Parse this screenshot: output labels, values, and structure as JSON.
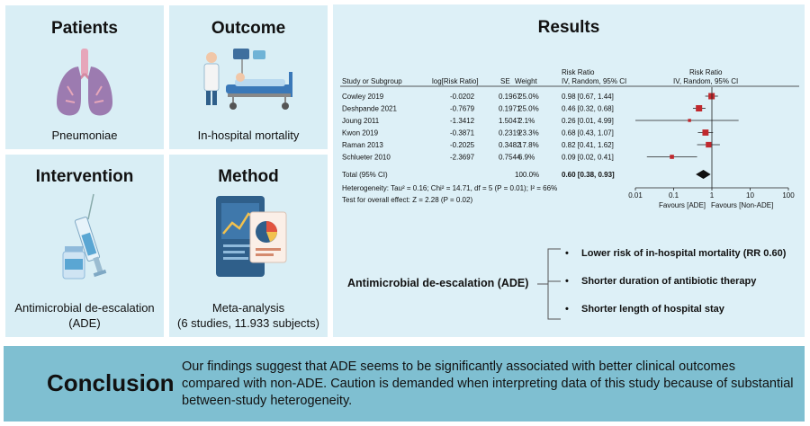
{
  "cards": {
    "patients": {
      "title": "Patients",
      "caption": "Pneumoniae"
    },
    "outcome": {
      "title": "Outcome",
      "caption": "In-hospital mortality"
    },
    "intervention": {
      "title": "Intervention",
      "caption_line1": "Antimicrobial de-escalation",
      "caption_line2": "(ADE)"
    },
    "method": {
      "title": "Method",
      "caption_line1": "Meta-analysis",
      "caption_line2": "(6 studies, 11.933 subjects)"
    }
  },
  "results": {
    "title": "Results",
    "headers": {
      "study": "Study or Subgroup",
      "logrr": "log[Risk Ratio]",
      "se": "SE",
      "weight": "Weight",
      "rr_top": "Risk Ratio",
      "rr_sub": "IV, Random, 95% CI",
      "plot_top": "Risk Ratio",
      "plot_sub": "IV, Random, 95% CI"
    },
    "studies": [
      {
        "name": "Cowley 2019",
        "logrr": "-0.0202",
        "se": "0.1967",
        "weight": "25.0%",
        "ci": "0.98 [0.67, 1.44]"
      },
      {
        "name": "Deshpande 2021",
        "logrr": "-0.7679",
        "se": "0.1971",
        "weight": "25.0%",
        "ci": "0.46 [0.32, 0.68]"
      },
      {
        "name": "Joung 2011",
        "logrr": "-1.3412",
        "se": "1.5047",
        "weight": "2.1%",
        "ci": "0.26 [0.01, 4.99]"
      },
      {
        "name": "Kwon 2019",
        "logrr": "-0.3871",
        "se": "0.2319",
        "weight": "23.3%",
        "ci": "0.68 [0.43, 1.07]"
      },
      {
        "name": "Raman 2013",
        "logrr": "-0.2025",
        "se": "0.3482",
        "weight": "17.8%",
        "ci": "0.82 [0.41, 1.62]"
      },
      {
        "name": "Schlueter 2010",
        "logrr": "-2.3697",
        "se": "0.7544",
        "weight": "6.9%",
        "ci": "0.09 [0.02, 0.41]"
      }
    ],
    "total": {
      "name": "Total (95% CI)",
      "weight": "100.0%",
      "ci": "0.60 [0.38, 0.93]"
    },
    "heterogeneity": "Heterogeneity: Tau² = 0.16; Chi² = 14.71, df = 5 (P = 0.01); I² = 66%",
    "overall": "Test for overall effect: Z = 2.28 (P = 0.02)",
    "axis_ticks": [
      "0.01",
      "0.1",
      "1",
      "10",
      "100"
    ],
    "favours_left": "Favours [ADE]",
    "favours_right": "Favours [Non-ADE]",
    "ade_label": "Antimicrobial de-escalation (ADE)",
    "bullets": [
      "Lower risk of in-hospital mortality (RR 0.60)",
      "Shorter duration of antibiotic therapy",
      "Shorter length of hospital stay"
    ]
  },
  "chart_data": {
    "type": "scatter",
    "title": "Risk Ratio",
    "xlabel": "IV, Random, 95% CI",
    "xscale": "log",
    "xlim": [
      0.01,
      100
    ],
    "categories": [
      "Cowley 2019",
      "Deshpande 2021",
      "Joung 2011",
      "Kwon 2019",
      "Raman 2013",
      "Schlueter 2010",
      "Total (95% CI)"
    ],
    "estimates": [
      0.98,
      0.46,
      0.26,
      0.68,
      0.82,
      0.09,
      0.6
    ],
    "ci_low": [
      0.67,
      0.32,
      0.01,
      0.43,
      0.41,
      0.02,
      0.38
    ],
    "ci_high": [
      1.44,
      0.68,
      4.99,
      1.07,
      1.62,
      0.41,
      0.93
    ],
    "weights": [
      25.0,
      25.0,
      2.1,
      23.3,
      17.8,
      6.9,
      100.0
    ]
  },
  "conclusion": {
    "title": "Conclusion",
    "text": "Our findings suggest that ADE seems to be significantly associated with better clinical outcomes compared with non-ADE. Caution is demanded when interpreting data of this study because of substantial between-study heterogeneity."
  },
  "colors": {
    "card": "#d9eef5",
    "results": "#ddf0f7",
    "conclusion": "#7fbfd1",
    "marker": "#c0282d"
  }
}
